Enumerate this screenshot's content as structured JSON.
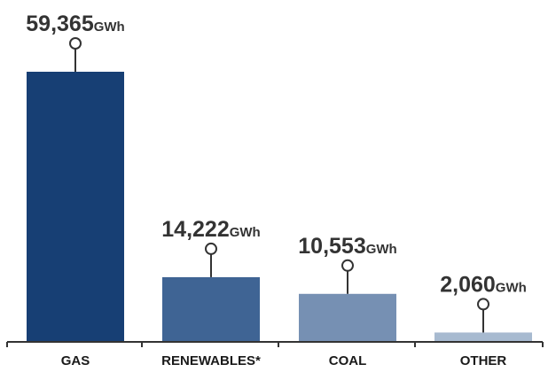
{
  "chart_data": {
    "type": "bar",
    "categories": [
      "GAS",
      "RENEWABLES*",
      "COAL",
      "OTHER"
    ],
    "values": [
      59365,
      14222,
      10553,
      2060
    ],
    "value_labels": [
      "59,365",
      "14,222",
      "10,553",
      "2,060"
    ],
    "unit": "GWh",
    "title": "",
    "xlabel": "",
    "ylabel": "",
    "ylim": [
      0,
      59365
    ],
    "grid": false,
    "legend": "none",
    "colors": [
      "#173f74",
      "#3f6494",
      "#7690b3",
      "#a7bad0"
    ],
    "axis_color": "#333333",
    "marker_color": "#333333"
  }
}
